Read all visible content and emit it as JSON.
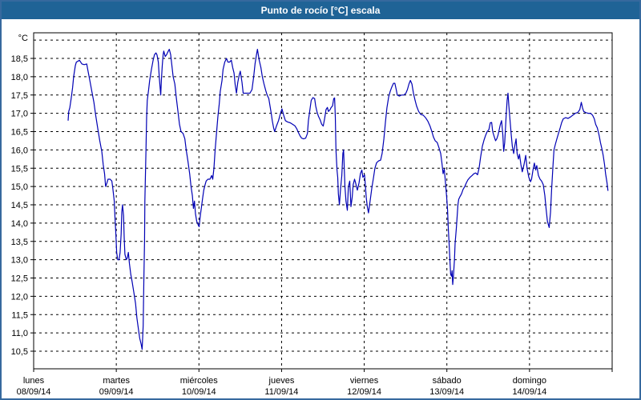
{
  "window": {
    "title": "Punto de rocío [°C] escala",
    "title_bar_color": "#1f6396",
    "frame_color": "#36699e"
  },
  "chart_data": {
    "type": "line",
    "title": "Punto de rocío [°C] escala",
    "ylabel": "°C",
    "xlabel": "",
    "x_unit": "hours since 2014-09-08 00:00",
    "xlim": [
      0,
      168
    ],
    "ylim": [
      10.0,
      19.2
    ],
    "grid": "dashed",
    "legend": "none",
    "line_color": "#0000b4",
    "text_color": "#000000",
    "y_tick_values": [
      18.5,
      18.0,
      17.5,
      17.0,
      16.5,
      16.0,
      15.5,
      15.0,
      14.5,
      14.0,
      13.5,
      13.0,
      12.5,
      12.0,
      11.5,
      11.0,
      10.5
    ],
    "y_tick_labels": [
      "18,5",
      "18,0",
      "17,5",
      "17,0",
      "16,5",
      "16,0",
      "15,5",
      "15,0",
      "14,5",
      "14,0",
      "13,5",
      "13,0",
      "12,5",
      "12,0",
      "11,5",
      "11,0",
      "10,5"
    ],
    "y_gridline_values": [
      19.0,
      18.5,
      18.0,
      17.5,
      17.0,
      16.5,
      16.0,
      15.5,
      15.0,
      14.5,
      14.0,
      13.5,
      13.0,
      12.5,
      12.0,
      11.5,
      11.0,
      10.5
    ],
    "x_days": [
      {
        "name": "lunes",
        "date": "08/09/14"
      },
      {
        "name": "martes",
        "date": "09/09/14"
      },
      {
        "name": "miércoles",
        "date": "10/09/14"
      },
      {
        "name": "jueves",
        "date": "11/09/14"
      },
      {
        "name": "viernes",
        "date": "12/09/14"
      },
      {
        "name": "sábado",
        "date": "13/09/14"
      },
      {
        "name": "domingo",
        "date": "14/09/14"
      }
    ],
    "points": [
      [
        10.0,
        16.8
      ],
      [
        10.2,
        17.05
      ],
      [
        10.5,
        17.15
      ],
      [
        10.9,
        17.4
      ],
      [
        11.3,
        17.7
      ],
      [
        11.6,
        18.0
      ],
      [
        12.1,
        18.3
      ],
      [
        12.4,
        18.4
      ],
      [
        13.3,
        18.45
      ],
      [
        14.0,
        18.35
      ],
      [
        14.7,
        18.33
      ],
      [
        15.4,
        18.35
      ],
      [
        15.8,
        18.15
      ],
      [
        16.3,
        17.9
      ],
      [
        16.9,
        17.6
      ],
      [
        17.5,
        17.3
      ],
      [
        18.0,
        16.95
      ],
      [
        18.6,
        16.6
      ],
      [
        19.2,
        16.25
      ],
      [
        19.8,
        15.95
      ],
      [
        20.2,
        15.6
      ],
      [
        20.6,
        15.35
      ],
      [
        20.9,
        15.0
      ],
      [
        21.3,
        15.1
      ],
      [
        21.6,
        15.2
      ],
      [
        22.2,
        15.2
      ],
      [
        22.7,
        15.15
      ],
      [
        23.0,
        14.95
      ],
      [
        23.4,
        14.6
      ],
      [
        23.6,
        14.2
      ],
      [
        23.85,
        13.75
      ],
      [
        24.1,
        13.2
      ],
      [
        24.4,
        13.0
      ],
      [
        24.8,
        13.0
      ],
      [
        25.1,
        13.2
      ],
      [
        25.4,
        13.7
      ],
      [
        25.6,
        14.3
      ],
      [
        25.8,
        14.5
      ],
      [
        26.1,
        14.2
      ],
      [
        26.3,
        13.6
      ],
      [
        26.5,
        13.15
      ],
      [
        26.9,
        13.0
      ],
      [
        27.2,
        13.05
      ],
      [
        27.5,
        13.2
      ],
      [
        27.8,
        12.9
      ],
      [
        28.2,
        12.6
      ],
      [
        28.6,
        12.4
      ],
      [
        29.1,
        12.1
      ],
      [
        29.6,
        11.8
      ],
      [
        30.0,
        11.4
      ],
      [
        30.5,
        11.05
      ],
      [
        30.8,
        10.85
      ],
      [
        31.2,
        10.7
      ],
      [
        31.5,
        10.55
      ],
      [
        31.8,
        11.2
      ],
      [
        32.0,
        12.4
      ],
      [
        32.2,
        13.5
      ],
      [
        32.3,
        14.6
      ],
      [
        32.6,
        15.9
      ],
      [
        32.8,
        16.9
      ],
      [
        33.0,
        17.35
      ],
      [
        33.4,
        17.65
      ],
      [
        33.7,
        17.9
      ],
      [
        34.2,
        18.2
      ],
      [
        34.7,
        18.45
      ],
      [
        35.1,
        18.6
      ],
      [
        35.5,
        18.65
      ],
      [
        35.8,
        18.6
      ],
      [
        36.2,
        18.4
      ],
      [
        36.5,
        17.95
      ],
      [
        36.9,
        17.5
      ],
      [
        37.1,
        17.9
      ],
      [
        37.35,
        18.3
      ],
      [
        37.6,
        18.6
      ],
      [
        37.8,
        18.7
      ],
      [
        38.2,
        18.55
      ],
      [
        38.6,
        18.6
      ],
      [
        39.1,
        18.7
      ],
      [
        39.4,
        18.75
      ],
      [
        39.8,
        18.6
      ],
      [
        40.1,
        18.35
      ],
      [
        40.5,
        18.0
      ],
      [
        41.0,
        17.8
      ],
      [
        41.4,
        17.45
      ],
      [
        41.9,
        17.05
      ],
      [
        42.35,
        16.7
      ],
      [
        42.8,
        16.5
      ],
      [
        43.4,
        16.45
      ],
      [
        43.9,
        16.3
      ],
      [
        44.3,
        16.0
      ],
      [
        44.8,
        15.7
      ],
      [
        45.3,
        15.35
      ],
      [
        45.7,
        15.0
      ],
      [
        46.1,
        14.75
      ],
      [
        46.4,
        14.4
      ],
      [
        46.7,
        14.6
      ],
      [
        47.0,
        14.25
      ],
      [
        47.35,
        14.05
      ],
      [
        47.8,
        13.95
      ],
      [
        48.05,
        13.9
      ],
      [
        48.4,
        14.2
      ],
      [
        48.75,
        14.45
      ],
      [
        49.1,
        14.7
      ],
      [
        49.4,
        14.9
      ],
      [
        49.8,
        15.05
      ],
      [
        50.1,
        15.15
      ],
      [
        50.6,
        15.2
      ],
      [
        51.2,
        15.2
      ],
      [
        51.7,
        15.3
      ],
      [
        52.0,
        15.2
      ],
      [
        52.35,
        15.5
      ],
      [
        52.7,
        16.0
      ],
      [
        53.05,
        16.4
      ],
      [
        53.5,
        16.9
      ],
      [
        53.9,
        17.25
      ],
      [
        54.2,
        17.6
      ],
      [
        54.7,
        17.9
      ],
      [
        55.0,
        18.2
      ],
      [
        55.5,
        18.4
      ],
      [
        56.0,
        18.5
      ],
      [
        56.4,
        18.4
      ],
      [
        56.9,
        18.4
      ],
      [
        57.4,
        18.45
      ],
      [
        57.8,
        18.25
      ],
      [
        58.2,
        18.1
      ],
      [
        58.5,
        17.8
      ],
      [
        58.9,
        17.55
      ],
      [
        59.3,
        17.85
      ],
      [
        59.7,
        18.05
      ],
      [
        60.0,
        18.15
      ],
      [
        60.5,
        17.85
      ],
      [
        60.85,
        17.55
      ],
      [
        61.4,
        17.55
      ],
      [
        62.1,
        17.55
      ],
      [
        62.8,
        17.55
      ],
      [
        63.4,
        17.65
      ],
      [
        63.9,
        18.0
      ],
      [
        64.3,
        18.35
      ],
      [
        64.7,
        18.6
      ],
      [
        65.0,
        18.75
      ],
      [
        65.5,
        18.45
      ],
      [
        66.0,
        18.25
      ],
      [
        66.4,
        18.0
      ],
      [
        66.9,
        17.8
      ],
      [
        67.4,
        17.62
      ],
      [
        67.8,
        17.5
      ],
      [
        68.3,
        17.4
      ],
      [
        68.65,
        17.2
      ],
      [
        69.0,
        17.0
      ],
      [
        69.3,
        16.8
      ],
      [
        69.7,
        16.6
      ],
      [
        70.0,
        16.5
      ],
      [
        70.5,
        16.65
      ],
      [
        71.1,
        16.8
      ],
      [
        71.7,
        17.0
      ],
      [
        72.1,
        17.12
      ],
      [
        72.6,
        16.95
      ],
      [
        73.1,
        16.8
      ],
      [
        73.8,
        16.76
      ],
      [
        74.5,
        16.74
      ],
      [
        75.2,
        16.7
      ],
      [
        75.85,
        16.66
      ],
      [
        76.4,
        16.58
      ],
      [
        76.9,
        16.47
      ],
      [
        77.4,
        16.38
      ],
      [
        77.8,
        16.32
      ],
      [
        78.4,
        16.3
      ],
      [
        79.0,
        16.32
      ],
      [
        79.5,
        16.45
      ],
      [
        79.8,
        16.8
      ],
      [
        80.3,
        17.15
      ],
      [
        80.6,
        17.35
      ],
      [
        81.1,
        17.43
      ],
      [
        81.6,
        17.4
      ],
      [
        81.9,
        17.2
      ],
      [
        82.25,
        17.05
      ],
      [
        82.7,
        16.92
      ],
      [
        83.2,
        16.82
      ],
      [
        83.65,
        16.7
      ],
      [
        84.1,
        16.65
      ],
      [
        84.5,
        16.85
      ],
      [
        84.9,
        17.1
      ],
      [
        85.3,
        17.16
      ],
      [
        85.6,
        17.05
      ],
      [
        86.1,
        17.1
      ],
      [
        86.4,
        17.16
      ],
      [
        86.8,
        17.2
      ],
      [
        87.15,
        17.4
      ],
      [
        87.4,
        17.42
      ],
      [
        87.6,
        16.9
      ],
      [
        87.8,
        16.0
      ],
      [
        88.1,
        15.45
      ],
      [
        88.3,
        15.25
      ],
      [
        88.5,
        14.8
      ],
      [
        88.8,
        14.5
      ],
      [
        89.1,
        14.9
      ],
      [
        89.5,
        15.3
      ],
      [
        89.8,
        15.9
      ],
      [
        90.0,
        16.0
      ],
      [
        90.4,
        15.0
      ],
      [
        90.7,
        14.6
      ],
      [
        91.1,
        14.35
      ],
      [
        91.4,
        15.0
      ],
      [
        91.8,
        15.15
      ],
      [
        92.15,
        14.45
      ],
      [
        92.5,
        14.7
      ],
      [
        92.8,
        15.05
      ],
      [
        93.2,
        15.2
      ],
      [
        93.5,
        15.1
      ],
      [
        94.0,
        14.9
      ],
      [
        94.5,
        15.1
      ],
      [
        94.9,
        15.35
      ],
      [
        95.3,
        15.45
      ],
      [
        95.6,
        15.25
      ],
      [
        96.1,
        15.32
      ],
      [
        96.6,
        14.7
      ],
      [
        96.9,
        14.45
      ],
      [
        97.25,
        14.28
      ],
      [
        97.7,
        14.6
      ],
      [
        98.2,
        14.95
      ],
      [
        98.7,
        15.25
      ],
      [
        99.1,
        15.5
      ],
      [
        99.6,
        15.65
      ],
      [
        100.2,
        15.7
      ],
      [
        100.75,
        15.72
      ],
      [
        101.2,
        15.9
      ],
      [
        101.7,
        16.3
      ],
      [
        102.15,
        16.75
      ],
      [
        102.6,
        17.15
      ],
      [
        103.1,
        17.45
      ],
      [
        103.55,
        17.6
      ],
      [
        104.0,
        17.72
      ],
      [
        104.5,
        17.82
      ],
      [
        104.9,
        17.82
      ],
      [
        105.3,
        17.65
      ],
      [
        105.6,
        17.5
      ],
      [
        106.2,
        17.47
      ],
      [
        106.8,
        17.5
      ],
      [
        107.5,
        17.5
      ],
      [
        108.1,
        17.55
      ],
      [
        108.55,
        17.65
      ],
      [
        109.0,
        17.8
      ],
      [
        109.4,
        17.9
      ],
      [
        109.85,
        17.8
      ],
      [
        110.3,
        17.55
      ],
      [
        110.75,
        17.36
      ],
      [
        111.2,
        17.2
      ],
      [
        111.8,
        17.05
      ],
      [
        112.4,
        16.97
      ],
      [
        113.1,
        16.95
      ],
      [
        113.8,
        16.88
      ],
      [
        114.5,
        16.78
      ],
      [
        115.1,
        16.65
      ],
      [
        115.65,
        16.5
      ],
      [
        116.1,
        16.35
      ],
      [
        116.6,
        16.25
      ],
      [
        117.2,
        16.2
      ],
      [
        117.75,
        16.05
      ],
      [
        118.2,
        15.9
      ],
      [
        118.55,
        15.65
      ],
      [
        118.9,
        15.35
      ],
      [
        119.25,
        15.48
      ],
      [
        119.6,
        15.1
      ],
      [
        119.95,
        14.7
      ],
      [
        120.2,
        14.35
      ],
      [
        120.4,
        13.9
      ],
      [
        120.65,
        13.45
      ],
      [
        120.9,
        12.95
      ],
      [
        121.1,
        12.6
      ],
      [
        121.35,
        12.55
      ],
      [
        121.5,
        12.7
      ],
      [
        121.7,
        12.32
      ],
      [
        121.9,
        12.55
      ],
      [
        122.2,
        13.0
      ],
      [
        122.4,
        13.45
      ],
      [
        122.75,
        13.85
      ],
      [
        123.0,
        14.2
      ],
      [
        123.2,
        14.5
      ],
      [
        123.45,
        14.65
      ],
      [
        123.8,
        14.72
      ],
      [
        124.25,
        14.8
      ],
      [
        124.7,
        14.92
      ],
      [
        125.2,
        15.0
      ],
      [
        125.65,
        15.1
      ],
      [
        126.1,
        15.18
      ],
      [
        126.7,
        15.25
      ],
      [
        127.3,
        15.3
      ],
      [
        127.85,
        15.35
      ],
      [
        128.4,
        15.37
      ],
      [
        128.9,
        15.32
      ],
      [
        129.35,
        15.5
      ],
      [
        129.8,
        15.8
      ],
      [
        130.3,
        16.1
      ],
      [
        130.8,
        16.27
      ],
      [
        131.25,
        16.4
      ],
      [
        131.7,
        16.5
      ],
      [
        132.2,
        16.55
      ],
      [
        132.6,
        16.74
      ],
      [
        133.0,
        16.75
      ],
      [
        133.3,
        16.5
      ],
      [
        133.8,
        16.35
      ],
      [
        134.15,
        16.25
      ],
      [
        134.5,
        16.3
      ],
      [
        134.85,
        16.4
      ],
      [
        135.2,
        16.55
      ],
      [
        135.55,
        16.7
      ],
      [
        135.9,
        16.8
      ],
      [
        136.25,
        16.4
      ],
      [
        136.5,
        15.96
      ],
      [
        136.8,
        16.2
      ],
      [
        137.2,
        16.9
      ],
      [
        137.5,
        17.35
      ],
      [
        137.75,
        17.55
      ],
      [
        138.0,
        17.2
      ],
      [
        138.3,
        16.85
      ],
      [
        138.7,
        16.4
      ],
      [
        139.0,
        16.1
      ],
      [
        139.4,
        15.9
      ],
      [
        139.7,
        16.1
      ],
      [
        140.1,
        16.3
      ],
      [
        140.4,
        15.9
      ],
      [
        140.8,
        15.75
      ],
      [
        141.1,
        15.88
      ],
      [
        141.5,
        15.6
      ],
      [
        141.9,
        15.4
      ],
      [
        142.4,
        15.6
      ],
      [
        142.9,
        15.85
      ],
      [
        143.3,
        15.5
      ],
      [
        143.8,
        15.25
      ],
      [
        144.3,
        15.13
      ],
      [
        144.6,
        15.2
      ],
      [
        145.0,
        15.45
      ],
      [
        145.4,
        15.64
      ],
      [
        145.8,
        15.45
      ],
      [
        146.1,
        15.57
      ],
      [
        146.6,
        15.3
      ],
      [
        147.05,
        15.2
      ],
      [
        147.5,
        15.15
      ],
      [
        148.0,
        15.05
      ],
      [
        148.45,
        14.75
      ],
      [
        148.8,
        14.4
      ],
      [
        149.2,
        14.05
      ],
      [
        149.5,
        13.95
      ],
      [
        149.7,
        13.88
      ],
      [
        150.1,
        14.3
      ],
      [
        150.4,
        14.9
      ],
      [
        150.8,
        15.55
      ],
      [
        151.1,
        16.0
      ],
      [
        151.5,
        16.15
      ],
      [
        151.95,
        16.3
      ],
      [
        152.4,
        16.45
      ],
      [
        152.9,
        16.6
      ],
      [
        153.35,
        16.75
      ],
      [
        153.8,
        16.85
      ],
      [
        154.5,
        16.88
      ],
      [
        155.2,
        16.86
      ],
      [
        155.9,
        16.9
      ],
      [
        156.6,
        16.95
      ],
      [
        157.3,
        17.0
      ],
      [
        158.0,
        17.02
      ],
      [
        158.6,
        17.1
      ],
      [
        159.05,
        17.3
      ],
      [
        159.4,
        17.15
      ],
      [
        159.75,
        17.05
      ],
      [
        160.3,
        17.02
      ],
      [
        161.0,
        17.0
      ],
      [
        161.7,
        17.0
      ],
      [
        162.3,
        16.95
      ],
      [
        162.8,
        16.85
      ],
      [
        163.2,
        16.7
      ],
      [
        163.7,
        16.6
      ],
      [
        164.2,
        16.4
      ],
      [
        164.6,
        16.2
      ],
      [
        165.1,
        16.0
      ],
      [
        165.4,
        15.85
      ],
      [
        165.8,
        15.6
      ],
      [
        166.1,
        15.35
      ],
      [
        166.5,
        15.1
      ],
      [
        166.8,
        14.88
      ]
    ]
  }
}
